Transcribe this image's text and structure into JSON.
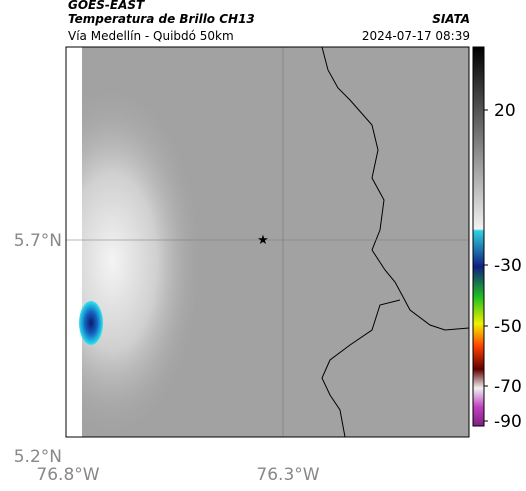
{
  "header": {
    "source": "GOES-EAST",
    "product": "Temperatura de Brillo CH13",
    "region": "Vía Medellín - Quibdó 50km",
    "agency": "SIATA",
    "timestamp": "2024-07-17 08:39"
  },
  "map": {
    "lat_labels": [
      "5.7°N",
      "5.2°N"
    ],
    "lon_labels": [
      "76.8°W",
      "76.3°W"
    ]
  },
  "colorbar": {
    "labels": [
      "20",
      "-30",
      "-50",
      "-70",
      "-90"
    ]
  }
}
